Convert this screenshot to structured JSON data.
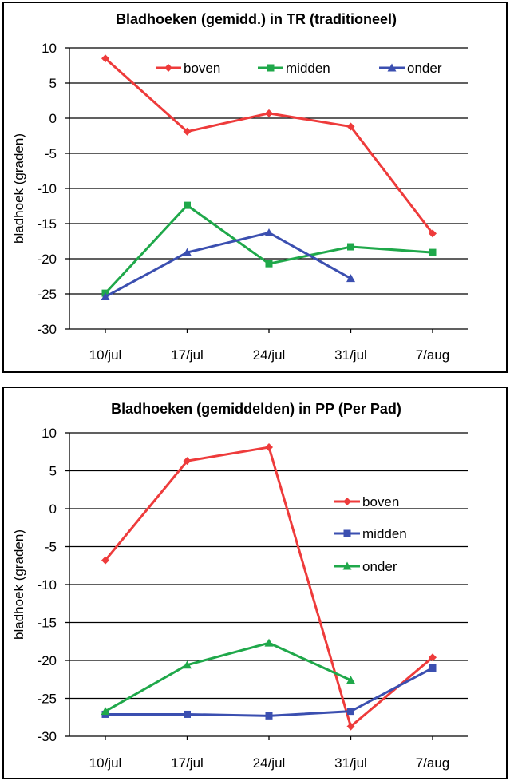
{
  "chart_data": [
    {
      "type": "line",
      "title": "Bladhoeken (gemidd.) in TR (traditioneel)",
      "ylabel": "bladhoek (graden)",
      "xlabel": "",
      "categories": [
        "10/jul",
        "17/jul",
        "24/jul",
        "31/jul",
        "7/aug"
      ],
      "ylim": [
        -30,
        10
      ],
      "yticks": [
        10,
        5,
        0,
        -5,
        -10,
        -15,
        -20,
        -25,
        -30
      ],
      "grid": true,
      "legend": "top-right",
      "series": [
        {
          "name": "boven",
          "color": "#ee3b3b",
          "marker": "diamond",
          "x": [
            8,
            15,
            22,
            29,
            36
          ],
          "values": [
            8.5,
            -1.9,
            0.7,
            -1.2,
            -16.4
          ]
        },
        {
          "name": "midden",
          "color": "#1fa84a",
          "marker": "square",
          "x": [
            8,
            15,
            22,
            29,
            36
          ],
          "values": [
            -24.9,
            -12.4,
            -20.7,
            -18.3,
            -19.1
          ]
        },
        {
          "name": "onder",
          "color": "#3b4fb0",
          "marker": "triangle",
          "x": [
            8,
            15,
            22,
            29
          ],
          "values": [
            -25.4,
            -19.1,
            -16.3,
            -22.8
          ]
        }
      ]
    },
    {
      "type": "line",
      "title": "Bladhoeken (gemiddelden) in PP (Per Pad)",
      "ylabel": "bladhoek (graden)",
      "xlabel": "",
      "categories": [
        "10/jul",
        "17/jul",
        "24/jul",
        "31/jul",
        "7/aug"
      ],
      "ylim": [
        -30,
        10
      ],
      "yticks": [
        10,
        5,
        0,
        -5,
        -10,
        -15,
        -20,
        -25,
        -30
      ],
      "grid": true,
      "legend": "right",
      "series": [
        {
          "name": "boven",
          "color": "#ee3b3b",
          "marker": "diamond",
          "x": [
            8,
            15,
            22,
            29,
            36
          ],
          "values": [
            -6.8,
            6.3,
            8.1,
            -28.7,
            -19.6
          ]
        },
        {
          "name": "midden",
          "color": "#3b4fb0",
          "marker": "square",
          "x": [
            8,
            15,
            22,
            29,
            36
          ],
          "values": [
            -27.1,
            -27.1,
            -27.3,
            -26.7,
            -21.0
          ]
        },
        {
          "name": "onder",
          "color": "#1fa84a",
          "marker": "triangle",
          "x": [
            8,
            15,
            22,
            29
          ],
          "values": [
            -26.7,
            -20.6,
            -17.7,
            -22.6
          ]
        }
      ]
    }
  ]
}
